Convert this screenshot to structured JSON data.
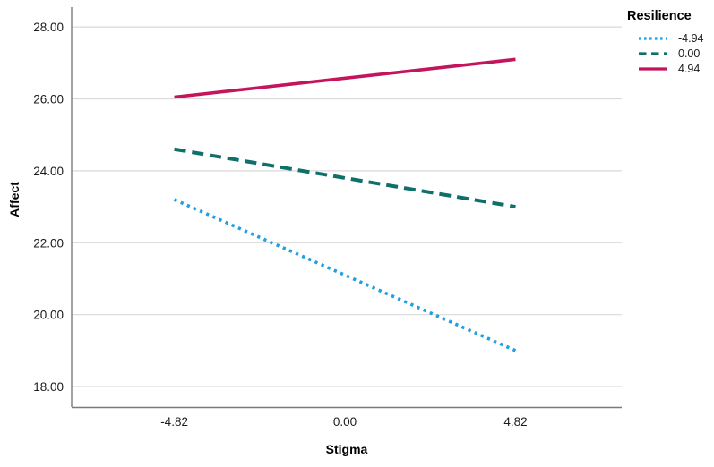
{
  "chart_data": {
    "type": "line",
    "title": "",
    "xlabel": "Stigma",
    "ylabel": "Affect",
    "legend_title": "Resilience",
    "legend_position": "top-right",
    "grid": "horizontal",
    "x_tick_labels": [
      "-4.82",
      "0.00",
      "4.82"
    ],
    "x_tick_values": [
      -4.82,
      0,
      4.82
    ],
    "y_tick_labels": [
      "18.00",
      "20.00",
      "22.00",
      "24.00",
      "26.00",
      "28.00"
    ],
    "y_tick_values": [
      18,
      20,
      22,
      24,
      26,
      28
    ],
    "xlim": [
      -7.72,
      7.82
    ],
    "ylim": [
      17.43,
      28.55
    ],
    "series": [
      {
        "name": "-4.94",
        "dash": "dotted",
        "color": "#1E9FE4",
        "x": [
          -4.82,
          4.82
        ],
        "y": [
          23.2,
          19.0
        ]
      },
      {
        "name": "0.00",
        "dash": "dashed",
        "color": "#0F6F6B",
        "x": [
          -4.82,
          4.82
        ],
        "y": [
          24.6,
          23.0
        ]
      },
      {
        "name": "4.94",
        "dash": "solid",
        "color": "#C4155C",
        "x": [
          -4.82,
          4.82
        ],
        "y": [
          26.05,
          27.1
        ]
      }
    ],
    "colors": {
      "gridline": "#D9D9D9",
      "axis": "#7A7A7A",
      "text": "#1B1B1B"
    }
  }
}
